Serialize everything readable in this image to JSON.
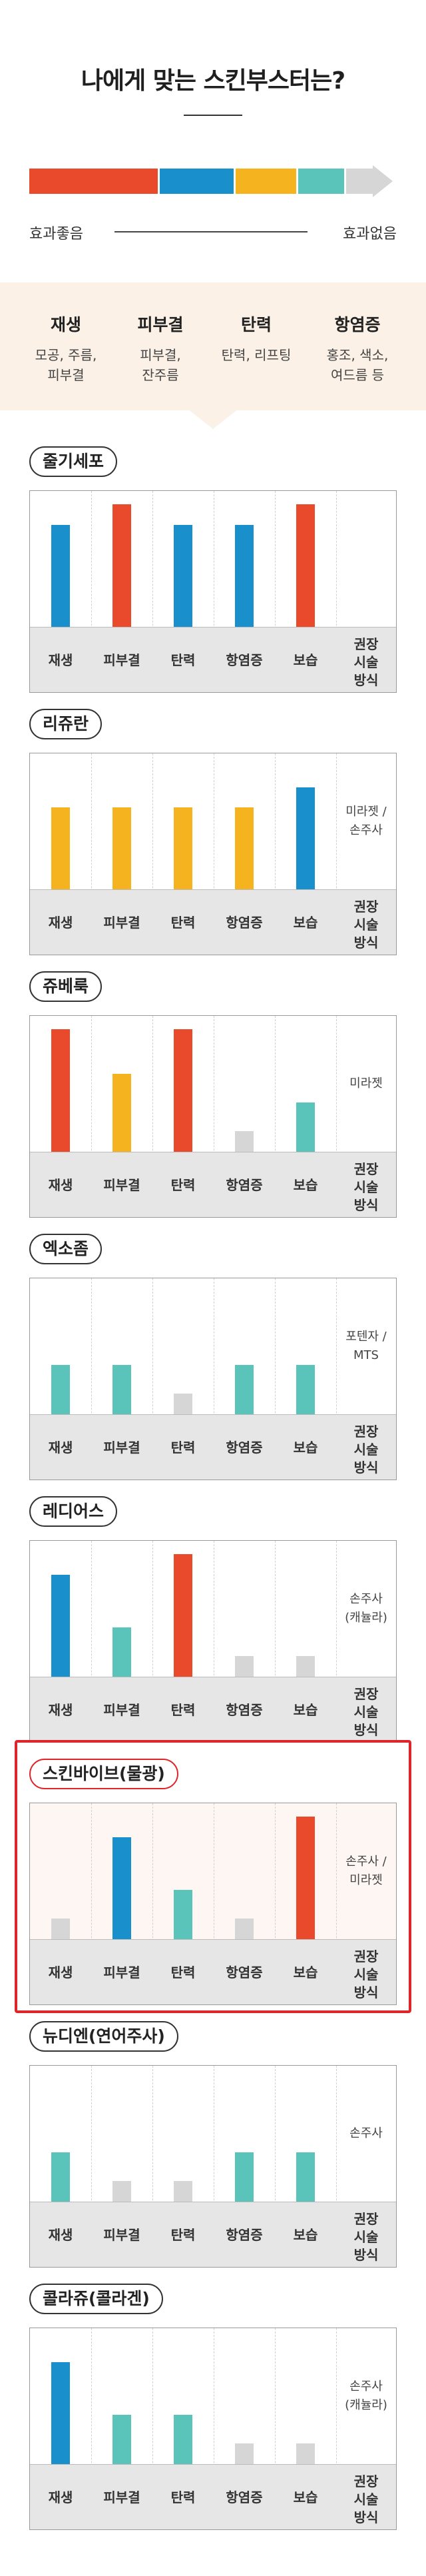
{
  "title": "나에게 맞는 스킨부스터는?",
  "scale": {
    "left_label": "효과좋음",
    "right_label": "효과없음",
    "segments": [
      {
        "color": "#e84a2b"
      },
      {
        "color": "#1990cc"
      },
      {
        "color": "#f5b320"
      },
      {
        "color": "#5bc4ba"
      },
      {
        "color": "#d6d6d6"
      }
    ]
  },
  "legend": [
    {
      "head": "재생",
      "desc": [
        "모공, 주름,",
        "피부결"
      ]
    },
    {
      "head": "피부결",
      "desc": [
        "피부결,",
        "잔주름"
      ]
    },
    {
      "head": "탄력",
      "desc": [
        "탄력, 리프팅"
      ]
    },
    {
      "head": "항염증",
      "desc": [
        "홍조, 색소,",
        "여드름 등"
      ]
    }
  ],
  "categories": [
    "재생",
    "피부결",
    "탄력",
    "항염증",
    "보습"
  ],
  "recommend_label": [
    "권장",
    "시술",
    "방식"
  ],
  "colors": {
    "red": "#e84a2b",
    "blue": "#1990cc",
    "yellow": "#f5b320",
    "teal": "#5bc4ba",
    "gray": "#d6d6d6",
    "highlight": "#e0252a"
  },
  "chart_data": [
    {
      "type": "bar",
      "name": "줄기세포",
      "categories": [
        "재생",
        "피부결",
        "탄력",
        "항염증",
        "보습"
      ],
      "values": [
        5,
        6,
        5,
        5,
        6
      ],
      "colors": [
        "blue",
        "red",
        "blue",
        "blue",
        "red"
      ],
      "method": [],
      "highlight": false
    },
    {
      "type": "bar",
      "name": "리쥬란",
      "categories": [
        "재생",
        "피부결",
        "탄력",
        "항염증",
        "보습"
      ],
      "values": [
        4,
        4,
        4,
        4,
        5
      ],
      "colors": [
        "yellow",
        "yellow",
        "yellow",
        "yellow",
        "blue"
      ],
      "method": [
        "미라젯 /",
        "손주사"
      ],
      "highlight": false
    },
    {
      "type": "bar",
      "name": "쥬베룩",
      "categories": [
        "재생",
        "피부결",
        "탄력",
        "항염증",
        "보습"
      ],
      "values": [
        6,
        3.8,
        6,
        1,
        2.4
      ],
      "colors": [
        "red",
        "yellow",
        "red",
        "gray",
        "teal"
      ],
      "method": [
        "미라젯"
      ],
      "highlight": false
    },
    {
      "type": "bar",
      "name": "엑소좀",
      "categories": [
        "재생",
        "피부결",
        "탄력",
        "항염증",
        "보습"
      ],
      "values": [
        2.4,
        2.4,
        1,
        2.4,
        2.4
      ],
      "colors": [
        "teal",
        "teal",
        "gray",
        "teal",
        "teal"
      ],
      "method": [
        "포텐자 /",
        "MTS"
      ],
      "highlight": false
    },
    {
      "type": "bar",
      "name": "레디어스",
      "categories": [
        "재생",
        "피부결",
        "탄력",
        "항염증",
        "보습"
      ],
      "values": [
        5,
        2.4,
        6,
        1,
        1
      ],
      "colors": [
        "blue",
        "teal",
        "red",
        "gray",
        "gray"
      ],
      "method": [
        "손주사",
        "(캐뉼라)"
      ],
      "highlight": false
    },
    {
      "type": "bar",
      "name": "스킨바이브(물광)",
      "categories": [
        "재생",
        "피부결",
        "탄력",
        "항염증",
        "보습"
      ],
      "values": [
        1,
        5,
        2.4,
        1,
        6
      ],
      "colors": [
        "gray",
        "blue",
        "teal",
        "gray",
        "red"
      ],
      "method": [
        "손주사 /",
        "미라젯"
      ],
      "highlight": true
    },
    {
      "type": "bar",
      "name": "뉴디엔(연어주사)",
      "categories": [
        "재생",
        "피부결",
        "탄력",
        "항염증",
        "보습"
      ],
      "values": [
        2.4,
        1,
        1,
        2.4,
        2.4
      ],
      "colors": [
        "teal",
        "gray",
        "gray",
        "teal",
        "teal"
      ],
      "method": [
        "손주사"
      ],
      "highlight": false
    },
    {
      "type": "bar",
      "name": "콜라쥬(콜라겐)",
      "categories": [
        "재생",
        "피부결",
        "탄력",
        "항염증",
        "보습"
      ],
      "values": [
        5,
        2.4,
        2.4,
        1,
        1
      ],
      "colors": [
        "blue",
        "teal",
        "teal",
        "gray",
        "gray"
      ],
      "method": [
        "손주사",
        "(캐뉼라)"
      ],
      "highlight": false
    }
  ]
}
